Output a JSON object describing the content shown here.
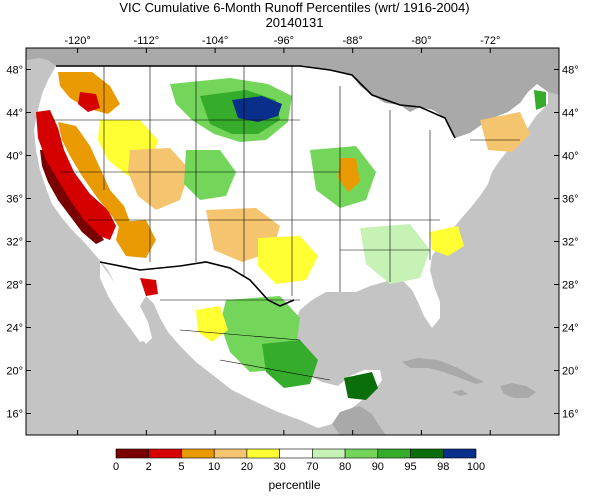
{
  "title": "VIC Cumulative 6-Month Runoff Percentiles (wrt/ 1916-2004)",
  "date": "20140131",
  "map": {
    "type": "map",
    "projection": "lat-lon",
    "lon_range": [
      -126,
      -64
    ],
    "lat_range": [
      14,
      50
    ],
    "lon_ticks": [
      "-120°",
      "-112°",
      "-104°",
      "-96°",
      "-88°",
      "-80°",
      "-72°"
    ],
    "lon_tick_values": [
      -120,
      -112,
      -104,
      -96,
      -88,
      -80,
      -72
    ],
    "lat_ticks": [
      "48°",
      "44°",
      "40°",
      "36°",
      "32°",
      "28°",
      "24°",
      "20°",
      "16°"
    ],
    "lat_tick_values": [
      48,
      44,
      40,
      36,
      32,
      28,
      24,
      20,
      16
    ],
    "colors": {
      "ocean": "#c4c4c4",
      "land_outside": "#a9a9a9",
      "land": "#ffffff",
      "border": "#000000"
    }
  },
  "legend": {
    "caption": "percentile",
    "breaks": [
      "0",
      "2",
      "5",
      "10",
      "20",
      "30",
      "70",
      "80",
      "90",
      "95",
      "98",
      "100"
    ],
    "colors": [
      "#7a0000",
      "#d50000",
      "#e89a00",
      "#f5c46e",
      "#ffff33",
      "#ffffff",
      "#c7f2b5",
      "#73d65a",
      "#35ac2c",
      "#0a6e0a",
      "#0a2f8a"
    ]
  }
}
